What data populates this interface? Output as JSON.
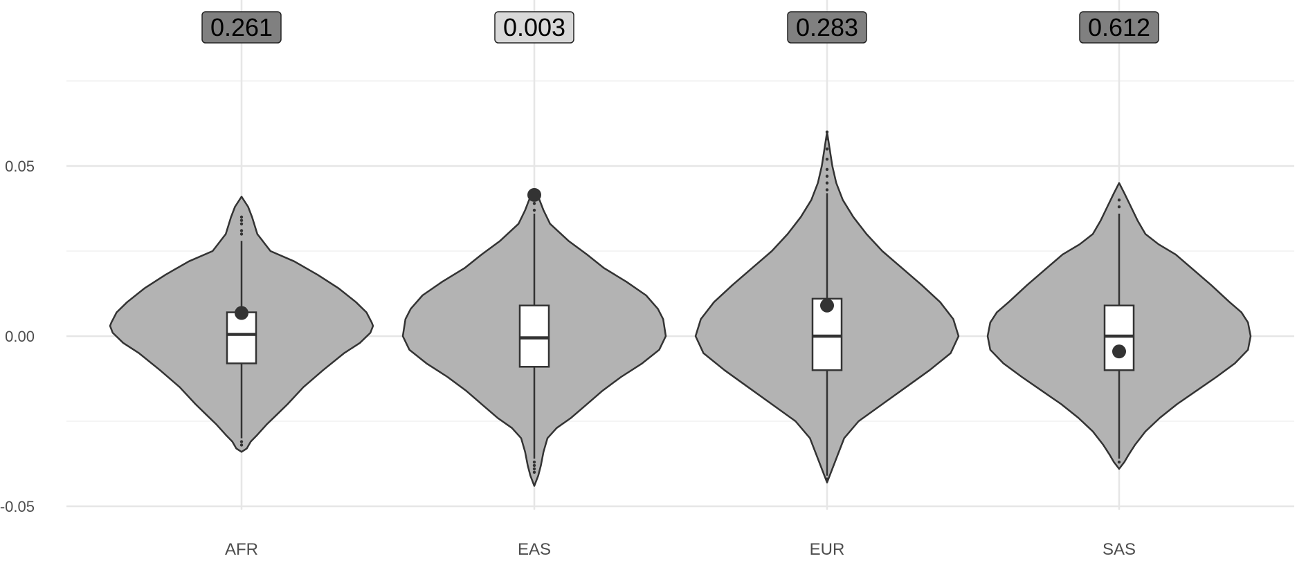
{
  "chart_data": {
    "type": "violin",
    "categories": [
      "AFR",
      "EAS",
      "EUR",
      "SAS"
    ],
    "y_ticks": [
      -0.05,
      0.0,
      0.05
    ],
    "y_tick_labels": [
      "-0.05",
      "0.00",
      "0.05"
    ],
    "ylim": [
      -0.051,
      0.101
    ],
    "grid": true,
    "colors": {
      "violin_fill": "#b3b3b3",
      "outline": "#333333",
      "box_fill": "#ffffff",
      "grid_major": "#e6e6e6",
      "grid_minor": "#f0f0f0"
    },
    "groups": [
      {
        "label": "AFR",
        "p_value": "0.261",
        "p_fill": "#808080",
        "box": {
          "lower_whisker": -0.03,
          "q1": -0.008,
          "median": 0.0005,
          "q3": 0.007,
          "upper_whisker": 0.028
        },
        "mean": 0.0068,
        "outliers": [
          0.03,
          0.031,
          0.033,
          0.034,
          0.035,
          -0.031,
          -0.032
        ],
        "violin_min": -0.034,
        "violin_max": 0.041,
        "density": [
          [
            0.041,
            0.0
          ],
          [
            0.038,
            0.05
          ],
          [
            0.035,
            0.08
          ],
          [
            0.03,
            0.12
          ],
          [
            0.025,
            0.22
          ],
          [
            0.022,
            0.4
          ],
          [
            0.018,
            0.58
          ],
          [
            0.014,
            0.74
          ],
          [
            0.01,
            0.87
          ],
          [
            0.007,
            0.95
          ],
          [
            0.004,
            0.99
          ],
          [
            0.003,
            1.0
          ],
          [
            0.001,
            0.98
          ],
          [
            -0.002,
            0.9
          ],
          [
            -0.005,
            0.78
          ],
          [
            -0.01,
            0.62
          ],
          [
            -0.015,
            0.47
          ],
          [
            -0.02,
            0.35
          ],
          [
            -0.023,
            0.27
          ],
          [
            -0.026,
            0.19
          ],
          [
            -0.029,
            0.12
          ],
          [
            -0.031,
            0.07
          ],
          [
            -0.033,
            0.04
          ],
          [
            -0.034,
            0.0
          ]
        ]
      },
      {
        "label": "EAS",
        "p_value": "0.003",
        "p_fill": "#d9d9d9",
        "box": {
          "lower_whisker": -0.036,
          "q1": -0.009,
          "median": -0.0005,
          "q3": 0.009,
          "upper_whisker": 0.036
        },
        "mean": 0.0415,
        "outliers": [
          0.037,
          0.039,
          0.04,
          -0.037,
          -0.038,
          -0.039,
          -0.04
        ],
        "violin_min": -0.044,
        "violin_max": 0.042,
        "density": [
          [
            0.042,
            0.0
          ],
          [
            0.04,
            0.04
          ],
          [
            0.037,
            0.07
          ],
          [
            0.033,
            0.12
          ],
          [
            0.028,
            0.26
          ],
          [
            0.024,
            0.4
          ],
          [
            0.02,
            0.53
          ],
          [
            0.016,
            0.7
          ],
          [
            0.012,
            0.85
          ],
          [
            0.008,
            0.94
          ],
          [
            0.005,
            0.98
          ],
          [
            0.0,
            1.0
          ],
          [
            -0.004,
            0.95
          ],
          [
            -0.008,
            0.82
          ],
          [
            -0.012,
            0.66
          ],
          [
            -0.016,
            0.52
          ],
          [
            -0.02,
            0.4
          ],
          [
            -0.024,
            0.28
          ],
          [
            -0.027,
            0.17
          ],
          [
            -0.03,
            0.1
          ],
          [
            -0.034,
            0.07
          ],
          [
            -0.038,
            0.05
          ],
          [
            -0.041,
            0.03
          ],
          [
            -0.044,
            0.0
          ]
        ]
      },
      {
        "label": "EUR",
        "p_value": "0.283",
        "p_fill": "#808080",
        "box": {
          "lower_whisker": -0.041,
          "q1": -0.01,
          "median": 0.0,
          "q3": 0.011,
          "upper_whisker": 0.042
        },
        "mean": 0.009,
        "outliers": [
          0.043,
          0.045,
          0.047,
          0.049,
          0.052,
          0.055,
          0.058,
          0.06,
          -0.042
        ],
        "violin_min": -0.043,
        "violin_max": 0.06,
        "density": [
          [
            0.06,
            0.0
          ],
          [
            0.055,
            0.02
          ],
          [
            0.05,
            0.04
          ],
          [
            0.045,
            0.07
          ],
          [
            0.04,
            0.12
          ],
          [
            0.035,
            0.2
          ],
          [
            0.03,
            0.3
          ],
          [
            0.025,
            0.42
          ],
          [
            0.02,
            0.57
          ],
          [
            0.015,
            0.72
          ],
          [
            0.01,
            0.86
          ],
          [
            0.005,
            0.96
          ],
          [
            0.0,
            1.0
          ],
          [
            -0.005,
            0.94
          ],
          [
            -0.01,
            0.78
          ],
          [
            -0.015,
            0.6
          ],
          [
            -0.02,
            0.42
          ],
          [
            -0.025,
            0.24
          ],
          [
            -0.03,
            0.13
          ],
          [
            -0.035,
            0.08
          ],
          [
            -0.04,
            0.03
          ],
          [
            -0.043,
            0.0
          ]
        ]
      },
      {
        "label": "SAS",
        "p_value": "0.612",
        "p_fill": "#808080",
        "box": {
          "lower_whisker": -0.036,
          "q1": -0.01,
          "median": 0.0,
          "q3": 0.009,
          "upper_whisker": 0.036
        },
        "mean": -0.0045,
        "outliers": [
          0.038,
          0.04,
          -0.037
        ],
        "violin_min": -0.039,
        "violin_max": 0.045,
        "density": [
          [
            0.045,
            0.0
          ],
          [
            0.042,
            0.04
          ],
          [
            0.038,
            0.09
          ],
          [
            0.034,
            0.14
          ],
          [
            0.03,
            0.2
          ],
          [
            0.027,
            0.3
          ],
          [
            0.024,
            0.43
          ],
          [
            0.02,
            0.55
          ],
          [
            0.015,
            0.7
          ],
          [
            0.01,
            0.84
          ],
          [
            0.007,
            0.93
          ],
          [
            0.004,
            0.98
          ],
          [
            0.0,
            1.0
          ],
          [
            -0.004,
            0.98
          ],
          [
            -0.008,
            0.88
          ],
          [
            -0.012,
            0.74
          ],
          [
            -0.016,
            0.59
          ],
          [
            -0.02,
            0.44
          ],
          [
            -0.024,
            0.31
          ],
          [
            -0.028,
            0.2
          ],
          [
            -0.032,
            0.12
          ],
          [
            -0.035,
            0.07
          ],
          [
            -0.037,
            0.04
          ],
          [
            -0.039,
            0.0
          ]
        ]
      }
    ]
  }
}
